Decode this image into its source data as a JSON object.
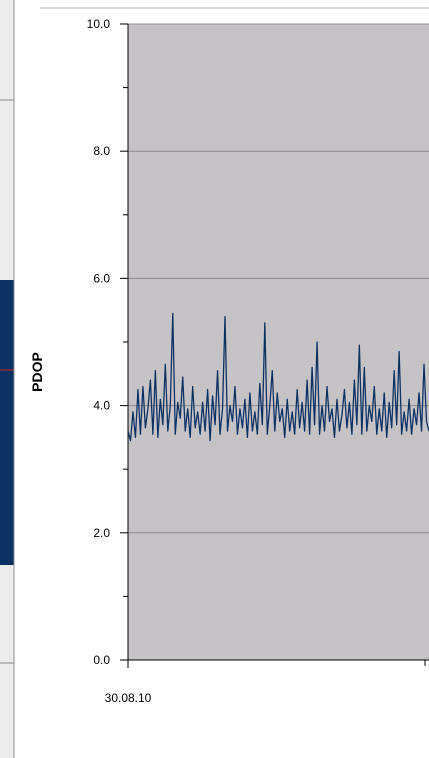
{
  "chart_data": {
    "type": "line",
    "title": "",
    "xlabel": "",
    "ylabel": "PDOP",
    "ylim": [
      0,
      10
    ],
    "yticks": [
      "0.0",
      "2.0",
      "4.0",
      "6.0",
      "8.0",
      "10.0"
    ],
    "ytick_values": [
      0,
      2,
      4,
      6,
      8,
      10
    ],
    "xtick_labels": [
      "30.08.10"
    ],
    "grid": true,
    "legend": "none",
    "colors": {
      "plot_background": "#c6c3c7",
      "series": "#0c3264",
      "gridline": "#8c8c8c",
      "left_panel_fill": "#0c3264",
      "left_panel_marker": "#cc2222"
    },
    "series": [
      {
        "values": [
          3.6,
          3.45,
          3.9,
          3.5,
          4.25,
          3.55,
          4.3,
          3.65,
          3.95,
          4.4,
          3.55,
          4.55,
          3.5,
          4.1,
          3.7,
          4.65,
          3.6,
          4.0,
          5.45,
          3.55,
          4.05,
          3.8,
          4.45,
          3.6,
          3.95,
          3.5,
          4.3,
          3.65,
          3.9,
          3.55,
          4.05,
          3.6,
          4.25,
          3.45,
          4.15,
          3.7,
          4.55,
          3.55,
          3.95,
          5.4,
          3.6,
          4.0,
          3.75,
          4.3,
          3.55,
          3.95,
          3.65,
          4.1,
          3.5,
          4.2,
          3.6,
          3.9,
          3.55,
          4.35,
          3.7,
          5.3,
          3.55,
          4.0,
          4.55,
          3.6,
          4.2,
          3.75,
          3.95,
          3.5,
          4.1,
          3.6,
          3.9,
          3.55,
          4.25,
          3.65,
          4.05,
          3.6,
          4.4,
          3.55,
          4.6,
          3.7,
          5.0,
          3.55,
          4.0,
          3.6,
          4.3,
          3.75,
          3.95,
          3.5,
          4.1,
          3.6,
          3.85,
          4.25,
          3.65,
          4.05,
          3.55,
          4.4,
          3.7,
          4.95,
          3.55,
          4.6,
          3.6,
          4.0,
          3.75,
          4.3,
          3.55,
          3.95,
          3.6,
          4.2,
          3.5,
          4.05,
          3.65,
          4.55,
          3.7,
          4.85,
          3.55,
          3.9,
          3.6,
          4.1,
          3.55,
          3.95,
          3.7,
          4.2,
          3.6,
          4.65,
          3.75,
          3.6
        ]
      }
    ]
  }
}
